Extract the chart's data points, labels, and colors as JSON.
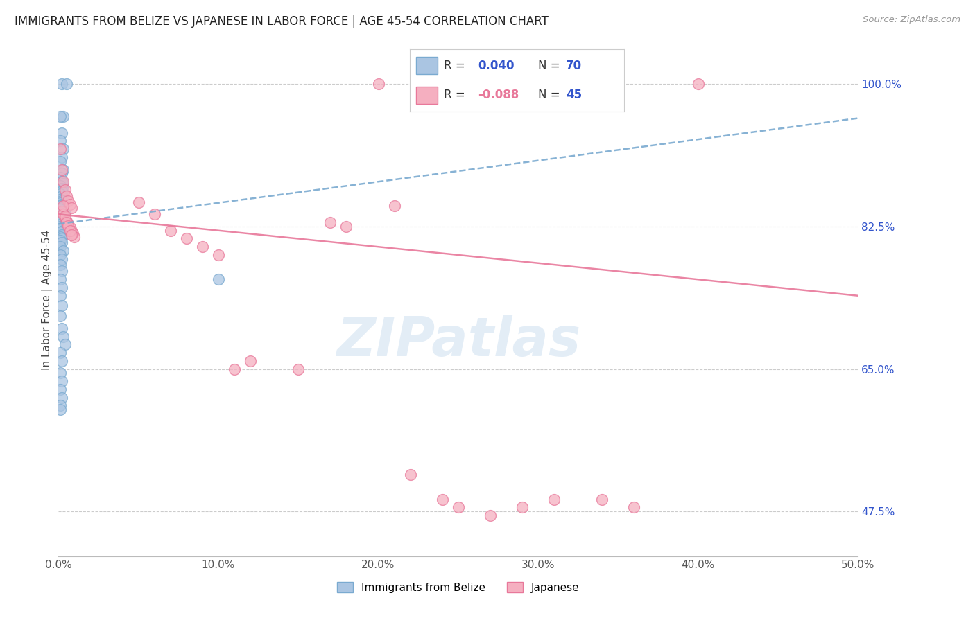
{
  "title": "IMMIGRANTS FROM BELIZE VS JAPANESE IN LABOR FORCE | AGE 45-54 CORRELATION CHART",
  "source": "Source: ZipAtlas.com",
  "ylabel": "In Labor Force | Age 45-54",
  "r_belize": 0.04,
  "n_belize": 70,
  "r_japanese": -0.088,
  "n_japanese": 45,
  "xlim": [
    0.0,
    0.5
  ],
  "ylim": [
    0.42,
    1.05
  ],
  "ytick_positions": [
    0.475,
    0.65,
    0.825,
    1.0
  ],
  "ytick_labels_right": [
    "47.5%",
    "65.0%",
    "82.5%",
    "100.0%"
  ],
  "xtick_vals": [
    0.0,
    0.05,
    0.1,
    0.15,
    0.2,
    0.25,
    0.3,
    0.35,
    0.4,
    0.45,
    0.5
  ],
  "xtick_labels": [
    "0.0%",
    "",
    "10.0%",
    "",
    "20.0%",
    "",
    "30.0%",
    "",
    "40.0%",
    "",
    "50.0%"
  ],
  "color_belize": "#aac5e2",
  "color_belize_edge": "#7aaad0",
  "color_japanese": "#f5afc0",
  "color_japanese_edge": "#e8789a",
  "color_trend_belize": "#7aaad0",
  "color_trend_japanese": "#e8789a",
  "belize_x": [
    0.002,
    0.005,
    0.003,
    0.001,
    0.002,
    0.001,
    0.003,
    0.002,
    0.001,
    0.003,
    0.002,
    0.001,
    0.002,
    0.003,
    0.001,
    0.002,
    0.003,
    0.002,
    0.001,
    0.002,
    0.003,
    0.001,
    0.002,
    0.001,
    0.002,
    0.001,
    0.002,
    0.001,
    0.002,
    0.001,
    0.002,
    0.001,
    0.002,
    0.001,
    0.002,
    0.001,
    0.002,
    0.001,
    0.002,
    0.003,
    0.001,
    0.002,
    0.001,
    0.002,
    0.001,
    0.002,
    0.001,
    0.003,
    0.001,
    0.002,
    0.001,
    0.002,
    0.001,
    0.002,
    0.001,
    0.002,
    0.001,
    0.002,
    0.003,
    0.004,
    0.001,
    0.002,
    0.001,
    0.002,
    0.001,
    0.002,
    0.001,
    0.004,
    0.001,
    0.1
  ],
  "belize_y": [
    1.0,
    1.0,
    0.96,
    0.96,
    0.94,
    0.93,
    0.92,
    0.91,
    0.905,
    0.895,
    0.89,
    0.885,
    0.88,
    0.878,
    0.875,
    0.872,
    0.87,
    0.868,
    0.865,
    0.862,
    0.86,
    0.858,
    0.856,
    0.854,
    0.852,
    0.85,
    0.848,
    0.846,
    0.844,
    0.842,
    0.84,
    0.838,
    0.836,
    0.834,
    0.832,
    0.83,
    0.828,
    0.825,
    0.823,
    0.82,
    0.818,
    0.815,
    0.812,
    0.81,
    0.808,
    0.805,
    0.8,
    0.795,
    0.79,
    0.785,
    0.778,
    0.77,
    0.76,
    0.75,
    0.74,
    0.728,
    0.715,
    0.7,
    0.69,
    0.68,
    0.67,
    0.66,
    0.645,
    0.635,
    0.625,
    0.615,
    0.605,
    0.84,
    0.6,
    0.76
  ],
  "japanese_x": [
    0.001,
    0.002,
    0.003,
    0.004,
    0.005,
    0.006,
    0.007,
    0.008,
    0.002,
    0.003,
    0.004,
    0.005,
    0.006,
    0.007,
    0.008,
    0.009,
    0.01,
    0.003,
    0.004,
    0.005,
    0.006,
    0.007,
    0.008,
    0.05,
    0.06,
    0.07,
    0.08,
    0.09,
    0.1,
    0.11,
    0.12,
    0.15,
    0.17,
    0.18,
    0.2,
    0.21,
    0.22,
    0.24,
    0.25,
    0.27,
    0.29,
    0.31,
    0.34,
    0.36,
    0.4
  ],
  "japanese_y": [
    0.92,
    0.895,
    0.88,
    0.87,
    0.862,
    0.856,
    0.852,
    0.848,
    0.844,
    0.84,
    0.836,
    0.832,
    0.828,
    0.824,
    0.82,
    0.816,
    0.812,
    0.85,
    0.838,
    0.83,
    0.826,
    0.82,
    0.815,
    0.855,
    0.84,
    0.82,
    0.81,
    0.8,
    0.79,
    0.65,
    0.66,
    0.65,
    0.83,
    0.825,
    1.0,
    0.85,
    0.52,
    0.49,
    0.48,
    0.47,
    0.48,
    0.49,
    0.49,
    0.48,
    1.0
  ],
  "trend_belize_y0": 0.828,
  "trend_belize_y1": 0.958,
  "trend_japanese_y0": 0.84,
  "trend_japanese_y1": 0.74
}
